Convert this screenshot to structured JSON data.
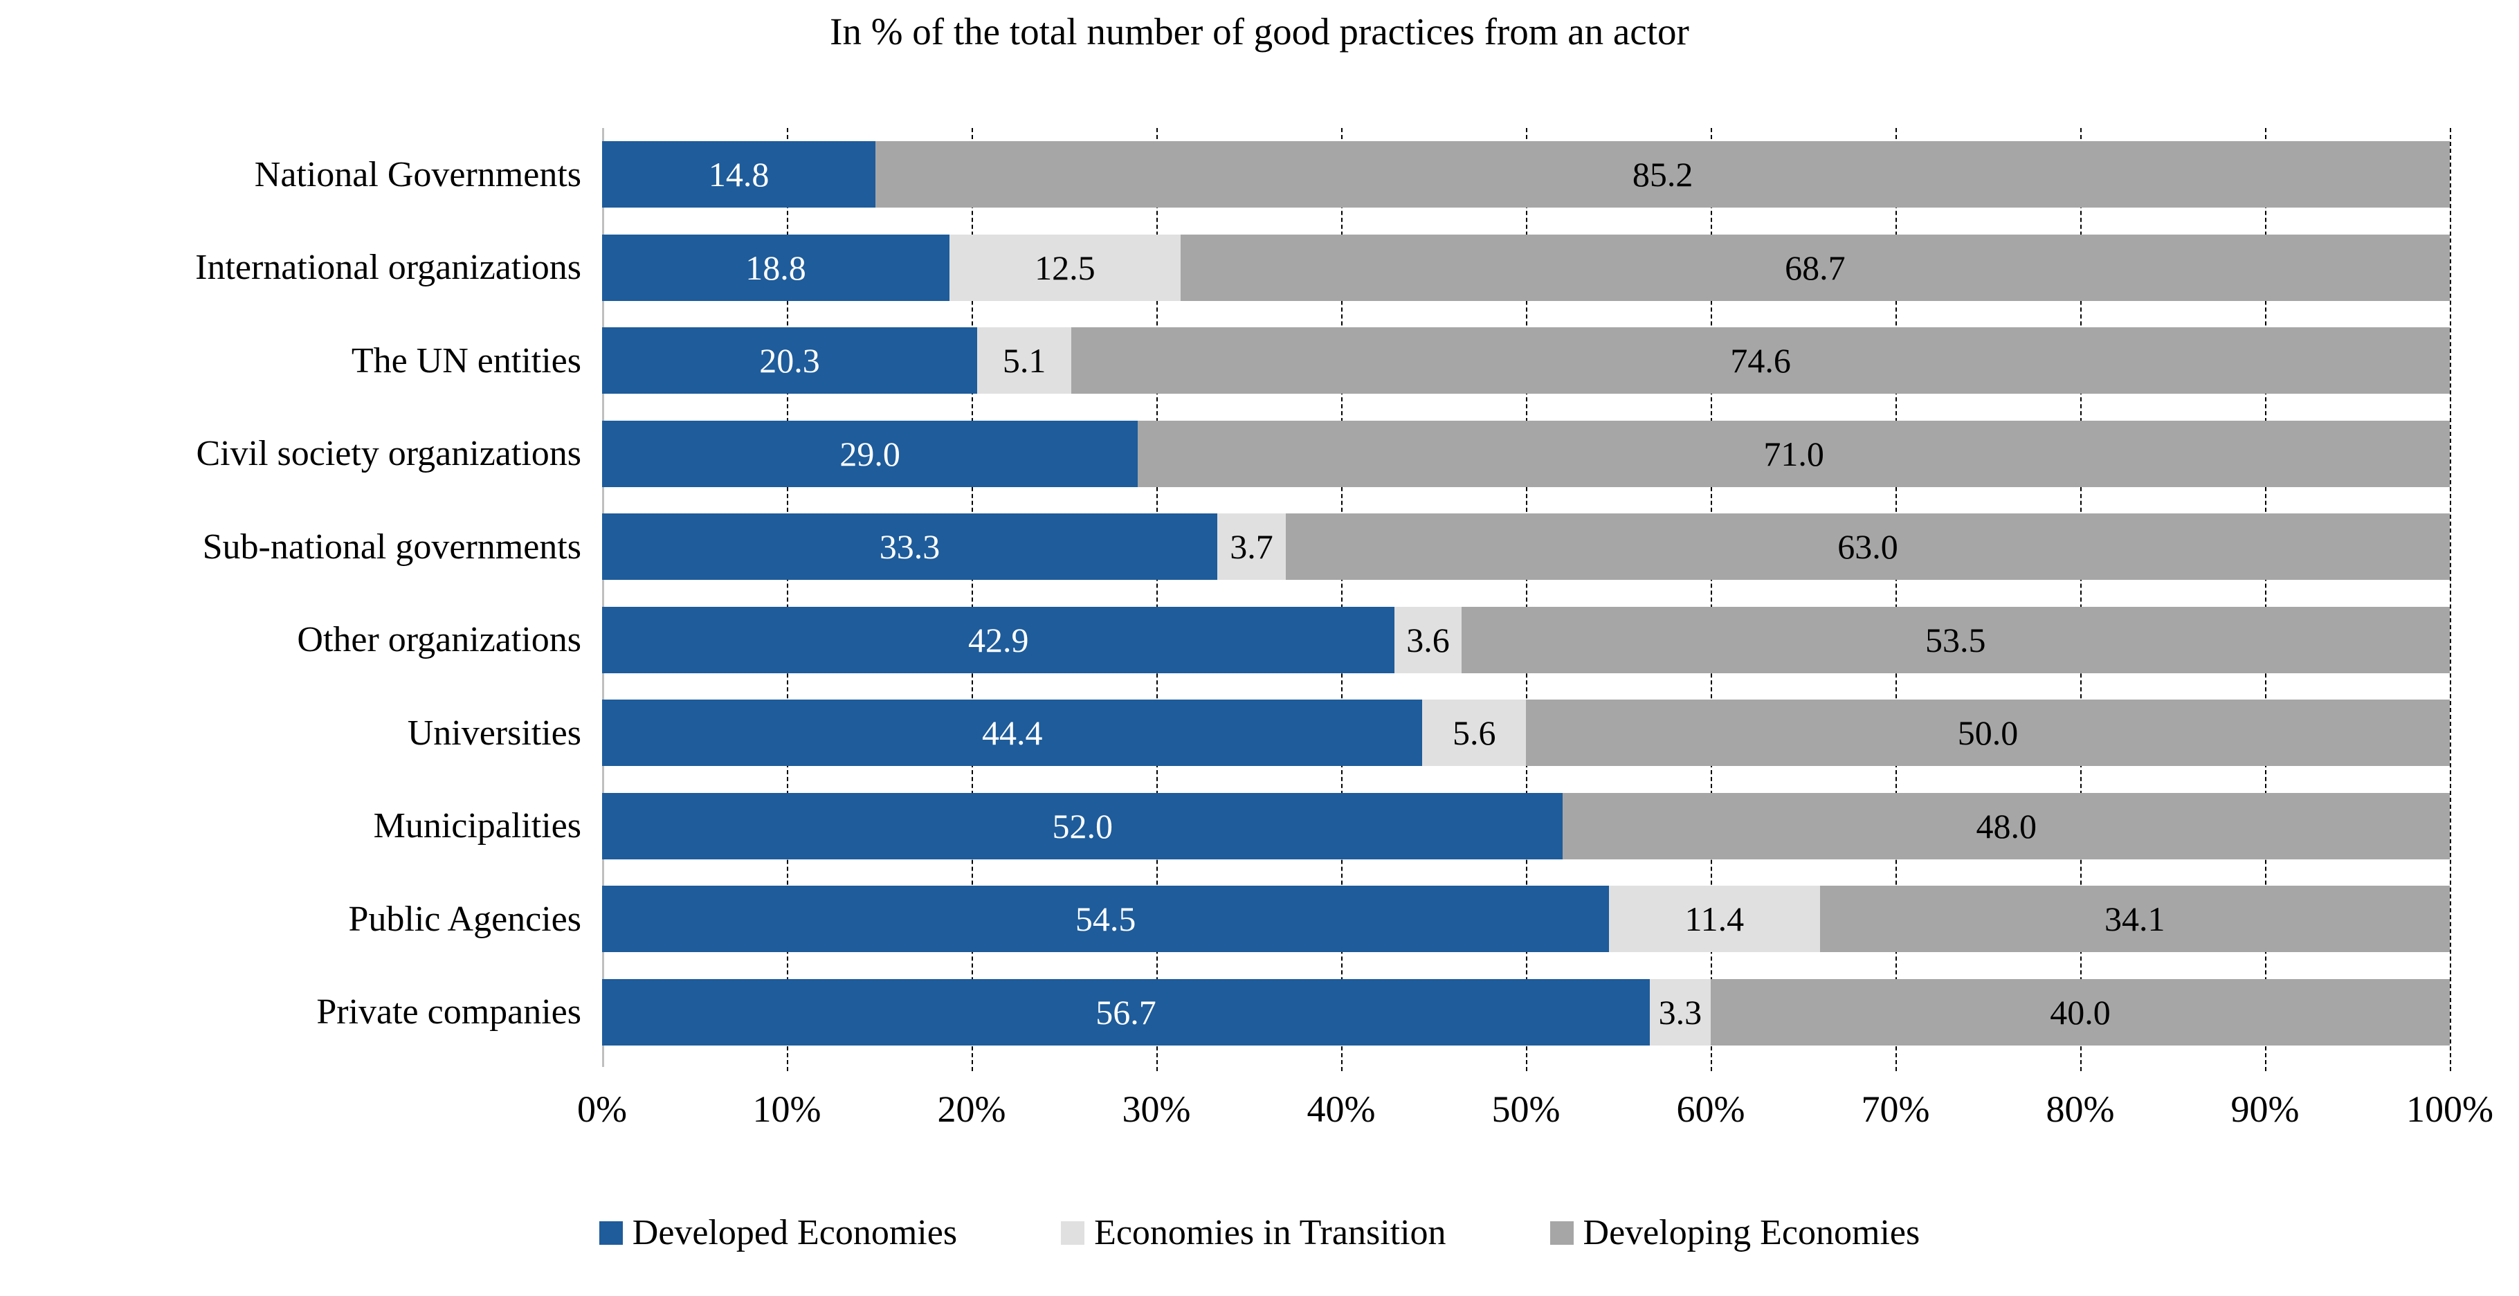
{
  "title": "In % of the total number of good practices from an actor",
  "colors": {
    "developed": "#1E5C9B",
    "transition": "#E0E0E0",
    "developing": "#A6A6A6",
    "axis_line": "#BFBFBF",
    "gridline": "#000000",
    "background": "#FFFFFF"
  },
  "chart_data": {
    "type": "bar",
    "orientation": "horizontal",
    "stacked": true,
    "title": "In % of the total number of good practices from an actor",
    "categories": [
      "National Governments",
      "International organizations",
      "The UN entities",
      "Civil society organizations",
      "Sub-national governments",
      "Other organizations",
      "Universities",
      "Municipalities",
      "Public Agencies",
      "Private companies"
    ],
    "series": [
      {
        "name": "Developed Economies",
        "color": "#1E5C9B",
        "label_color": "#FFFFFF",
        "values": [
          14.8,
          18.8,
          20.3,
          29.0,
          33.3,
          42.9,
          44.4,
          52.0,
          54.5,
          56.7
        ]
      },
      {
        "name": "Economies in Transition",
        "color": "#E0E0E0",
        "label_color": "#000000",
        "values": [
          0,
          12.5,
          5.1,
          0,
          3.7,
          3.6,
          5.6,
          0,
          11.4,
          3.3
        ]
      },
      {
        "name": "Developing Economies",
        "color": "#A6A6A6",
        "label_color": "#000000",
        "values": [
          85.2,
          68.7,
          74.6,
          71.0,
          63.0,
          53.5,
          50.0,
          48.0,
          34.1,
          40.0
        ]
      }
    ],
    "x_ticks": [
      "0%",
      "10%",
      "20%",
      "30%",
      "40%",
      "50%",
      "60%",
      "70%",
      "80%",
      "90%",
      "100%"
    ],
    "xlim": [
      0,
      100
    ],
    "grid": "dashed-vertical",
    "value_label_decimals": 1,
    "legend_position": "bottom"
  }
}
